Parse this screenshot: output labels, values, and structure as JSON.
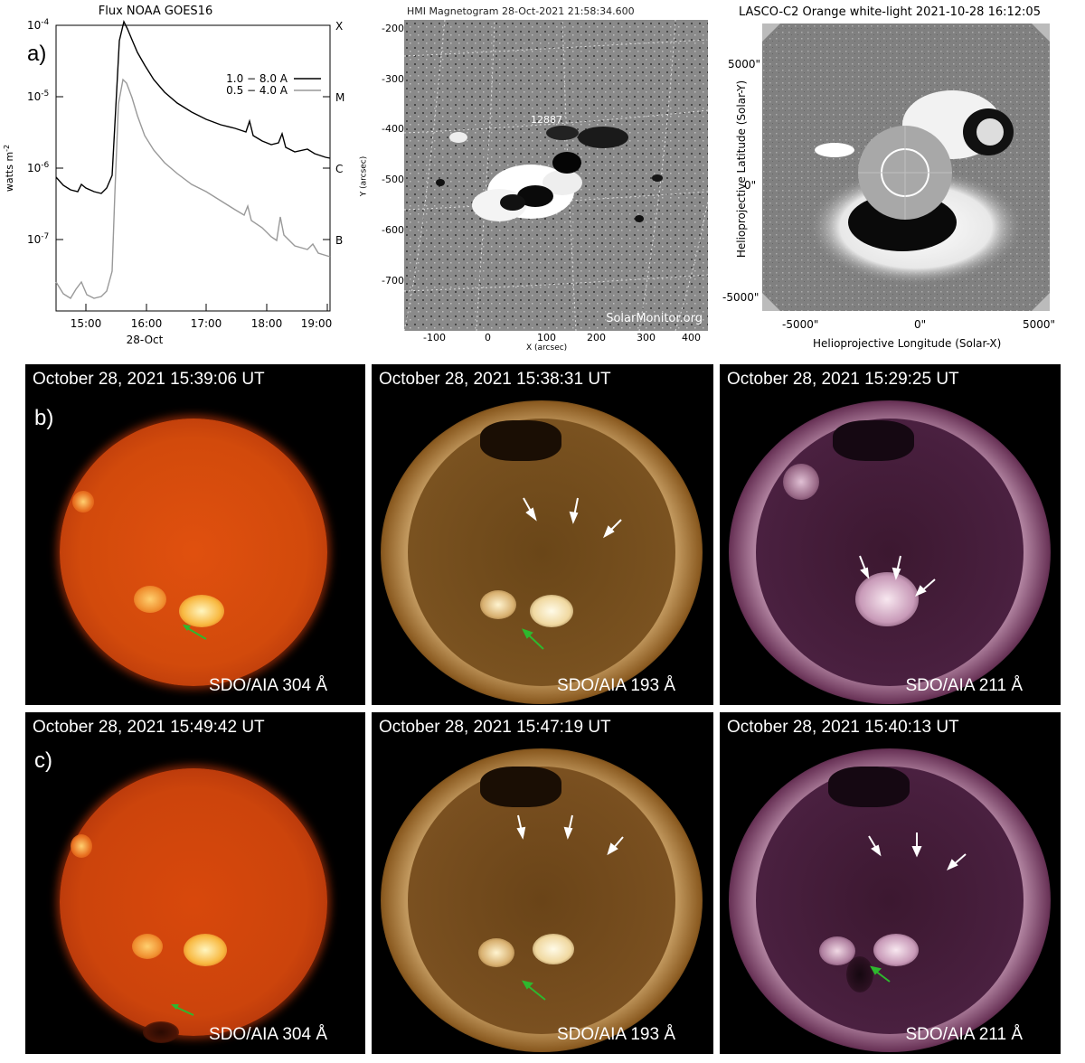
{
  "panel_a": {
    "label": "a)",
    "goes": {
      "title": "Flux  NOAA GOES16",
      "ylabel": "watts m",
      "ylabel_sup": "-2",
      "y_ticks": [
        {
          "base": "10",
          "exp": "-4"
        },
        {
          "base": "10",
          "exp": "-5"
        },
        {
          "base": "10",
          "exp": "-6"
        },
        {
          "base": "10",
          "exp": "-7"
        }
      ],
      "class_labels": [
        "X",
        "M",
        "C",
        "B"
      ],
      "x_ticks": [
        "15:00",
        "16:00",
        "17:00",
        "18:00",
        "19:00"
      ],
      "xlabel": "28-Oct",
      "legend": [
        {
          "label": "1.0 − 8.0 A",
          "color": "#000000"
        },
        {
          "label": "0.5 − 4.0 A",
          "color": "#999999"
        }
      ]
    },
    "hmi": {
      "title": "HMI Magnetogram 28-Oct-2021 21:58:34.600",
      "region": "12887",
      "ylabel": "Y (arcsec)",
      "xlabel": "X (arcsec)",
      "y_ticks": [
        "-200",
        "-300",
        "-400",
        "-500",
        "-600",
        "-700"
      ],
      "x_ticks": [
        "-100",
        "0",
        "100",
        "200",
        "300",
        "400"
      ],
      "watermark": "SolarMonitor.org"
    },
    "lasco": {
      "title": "LASCO-C2 Orange white-light 2021-10-28 16:12:05",
      "ylabel": "Helioprojective Latitude (Solar-Y)",
      "xlabel": "Helioprojective Longitude (Solar-X)",
      "y_ticks": [
        "5000\"",
        "0\"",
        "-5000\""
      ],
      "x_ticks": [
        "-5000\"",
        "0\"",
        "5000\""
      ]
    }
  },
  "row_b": {
    "label": "b)",
    "panels": [
      {
        "timestamp": "October 28, 2021 15:39:06 UT",
        "instrument": "SDO/AIA 304 Å",
        "color": "#d8400a"
      },
      {
        "timestamp": "October 28, 2021 15:38:31 UT",
        "instrument": "SDO/AIA 193 Å",
        "color": "#9a6a2e"
      },
      {
        "timestamp": "October 28, 2021 15:29:25 UT",
        "instrument": "SDO/AIA 211 Å",
        "color": "#6a3a5a"
      }
    ]
  },
  "row_c": {
    "label": "c)",
    "panels": [
      {
        "timestamp": "October 28, 2021 15:49:42 UT",
        "instrument": "SDO/AIA 304 Å",
        "color": "#d0400a"
      },
      {
        "timestamp": "October 28, 2021 15:47:19 UT",
        "instrument": "SDO/AIA 193 Å",
        "color": "#8e6028"
      },
      {
        "timestamp": "October 28, 2021 15:40:13 UT",
        "instrument": "SDO/AIA 211 Å",
        "color": "#633556"
      }
    ]
  },
  "colors": {
    "arrow_white": "#ffffff",
    "arrow_green": "#2eb82e"
  }
}
